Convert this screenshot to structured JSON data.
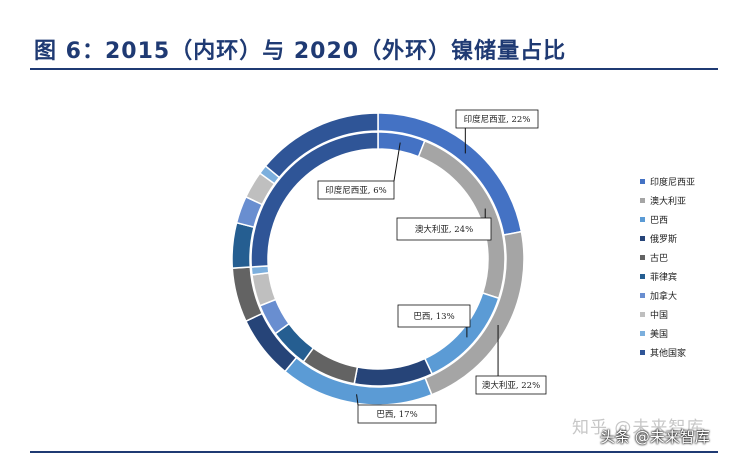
{
  "title": "图 6：2015（内环）与 2020（外环）镍储量占比",
  "watermark_primary": "知乎 @未来智库",
  "watermark_secondary": "头条 @未来智库",
  "colors": {
    "印度尼西亚": "#4472c4",
    "澳大利亚": "#a5a5a5",
    "巴西": "#5b9bd5",
    "俄罗斯": "#264478",
    "古巴": "#636363",
    "菲律宾": "#255e91",
    "加拿大": "#698ed0",
    "中国": "#bfbfbf",
    "美国": "#7cafdd",
    "其他国家": "#2f5597"
  },
  "chart_data": {
    "type": "pie",
    "subtype": "nested-donut",
    "title": "图 6：2015（内环）与 2020（外环）镍储量占比",
    "legend": [
      "印度尼西亚",
      "澳大利亚",
      "巴西",
      "俄罗斯",
      "古巴",
      "菲律宾",
      "加拿大",
      "中国",
      "美国",
      "其他国家"
    ],
    "legend_position": "right",
    "rings": [
      {
        "name": "2015（内环）",
        "slices": [
          {
            "label": "印度尼西亚",
            "value": 6
          },
          {
            "label": "澳大利亚",
            "value": 24
          },
          {
            "label": "巴西",
            "value": 13
          },
          {
            "label": "俄罗斯",
            "value": 10
          },
          {
            "label": "古巴",
            "value": 7
          },
          {
            "label": "菲律宾",
            "value": 5
          },
          {
            "label": "加拿大",
            "value": 4
          },
          {
            "label": "中国",
            "value": 4
          },
          {
            "label": "美国",
            "value": 1
          },
          {
            "label": "其他国家",
            "value": 26
          }
        ]
      },
      {
        "name": "2020（外环）",
        "slices": [
          {
            "label": "印度尼西亚",
            "value": 22
          },
          {
            "label": "澳大利亚",
            "value": 22
          },
          {
            "label": "巴西",
            "value": 17
          },
          {
            "label": "俄罗斯",
            "value": 7
          },
          {
            "label": "古巴",
            "value": 6
          },
          {
            "label": "菲律宾",
            "value": 5
          },
          {
            "label": "加拿大",
            "value": 3
          },
          {
            "label": "中国",
            "value": 3
          },
          {
            "label": "美国",
            "value": 1
          },
          {
            "label": "其他国家",
            "value": 14
          }
        ]
      }
    ],
    "annotations": [
      {
        "ring": 1,
        "label": "印度尼西亚",
        "text": "印度尼西亚, 22%"
      },
      {
        "ring": 1,
        "label": "澳大利亚",
        "text": "澳大利亚, 22%"
      },
      {
        "ring": 1,
        "label": "巴西",
        "text": "巴西, 17%"
      },
      {
        "ring": 0,
        "label": "印度尼西亚",
        "text": "印度尼西亚, 6%"
      },
      {
        "ring": 0,
        "label": "澳大利亚",
        "text": "澳大利亚, 24%"
      },
      {
        "ring": 0,
        "label": "巴西",
        "text": "巴西, 13%"
      }
    ]
  }
}
